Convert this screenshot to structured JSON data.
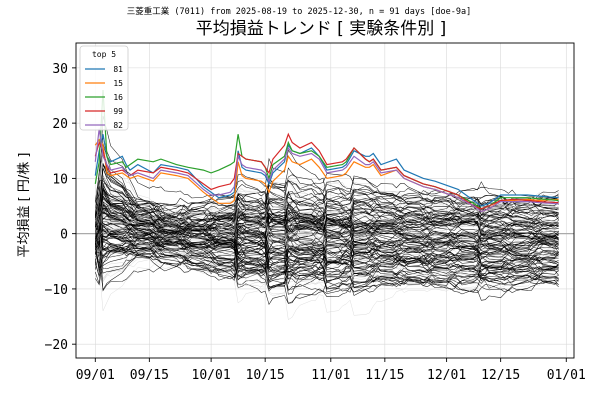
{
  "chart_data": {
    "type": "line",
    "suptitle": "三菱重工業 (7011) from 2025-08-19 to 2025-12-30, n = 91 days [doe-9a]",
    "title": "平均損益トレンド [ 実験条件別 ]",
    "xlabel": "",
    "ylabel": "平均損益 [ 円/株 ]",
    "xlim": [
      "2025-08-27",
      "2026-01-03"
    ],
    "ylim": [
      -22.5,
      34.5
    ],
    "xticks": [
      "2025-09-01",
      "2025-09-15",
      "2025-10-01",
      "2025-10-15",
      "2025-11-01",
      "2025-11-15",
      "2025-12-01",
      "2025-12-15",
      "2026-01-01"
    ],
    "xtick_labels": [
      "09/01",
      "09/15",
      "10/01",
      "10/15",
      "11/01",
      "11/15",
      "12/01",
      "12/15",
      "01/01"
    ],
    "yticks": [
      -20,
      -10,
      0,
      10,
      20,
      30
    ],
    "ytick_labels": [
      "−20",
      "−10",
      "0",
      "10",
      "20",
      "30"
    ],
    "grid": true,
    "zero_line": true,
    "legend": {
      "title": "top 5",
      "placement": "top-left"
    },
    "background_series": {
      "description_count": 150,
      "color": "#000000",
      "note": "many experiment-condition trend lines (black and light gray)"
    },
    "series": [
      {
        "name": "81",
        "color": "#1f77b4",
        "points": [
          [
            "2025-09-01",
            10.5
          ],
          [
            "2025-09-02",
            15.0
          ],
          [
            "2025-09-03",
            18.0
          ],
          [
            "2025-09-04",
            14.0
          ],
          [
            "2025-09-05",
            13.0
          ],
          [
            "2025-09-08",
            14.0
          ],
          [
            "2025-09-09",
            12.5
          ],
          [
            "2025-09-10",
            11.5
          ],
          [
            "2025-09-12",
            12.5
          ],
          [
            "2025-09-16",
            11.0
          ],
          [
            "2025-09-18",
            12.5
          ],
          [
            "2025-09-22",
            12.0
          ],
          [
            "2025-09-25",
            11.5
          ],
          [
            "2025-09-29",
            8.5
          ],
          [
            "2025-10-01",
            7.5
          ],
          [
            "2025-10-03",
            6.5
          ],
          [
            "2025-10-06",
            7.0
          ],
          [
            "2025-10-07",
            7.5
          ],
          [
            "2025-10-08",
            15.0
          ],
          [
            "2025-10-09",
            12.0
          ],
          [
            "2025-10-10",
            11.5
          ],
          [
            "2025-10-14",
            11.0
          ],
          [
            "2025-10-15",
            10.5
          ],
          [
            "2025-10-16",
            9.0
          ],
          [
            "2025-10-17",
            11.0
          ],
          [
            "2025-10-20",
            13.0
          ],
          [
            "2025-10-21",
            16.0
          ],
          [
            "2025-10-22",
            15.0
          ],
          [
            "2025-10-24",
            14.5
          ],
          [
            "2025-10-27",
            15.5
          ],
          [
            "2025-10-29",
            14.0
          ],
          [
            "2025-10-31",
            11.5
          ],
          [
            "2025-11-04",
            12.0
          ],
          [
            "2025-11-05",
            12.5
          ],
          [
            "2025-11-07",
            15.0
          ],
          [
            "2025-11-10",
            14.0
          ],
          [
            "2025-11-11",
            14.0
          ],
          [
            "2025-11-12",
            14.5
          ],
          [
            "2025-11-14",
            12.5
          ],
          [
            "2025-11-18",
            13.5
          ],
          [
            "2025-11-20",
            11.5
          ],
          [
            "2025-11-25",
            10.0
          ],
          [
            "2025-11-28",
            9.5
          ],
          [
            "2025-12-02",
            8.5
          ],
          [
            "2025-12-04",
            8.0
          ],
          [
            "2025-12-08",
            6.0
          ],
          [
            "2025-12-10",
            5.0
          ],
          [
            "2025-12-12",
            5.5
          ],
          [
            "2025-12-15",
            7.0
          ],
          [
            "2025-12-18",
            7.0
          ],
          [
            "2025-12-22",
            7.0
          ],
          [
            "2025-12-25",
            6.8
          ],
          [
            "2025-12-30",
            6.5
          ]
        ]
      },
      {
        "name": "15",
        "color": "#ff7f0e",
        "points": [
          [
            "2025-09-01",
            16.0
          ],
          [
            "2025-09-02",
            17.0
          ],
          [
            "2025-09-03",
            16.0
          ],
          [
            "2025-09-04",
            11.0
          ],
          [
            "2025-09-05",
            10.5
          ],
          [
            "2025-09-08",
            11.0
          ],
          [
            "2025-09-09",
            10.5
          ],
          [
            "2025-09-10",
            10.0
          ],
          [
            "2025-09-12",
            10.5
          ],
          [
            "2025-09-16",
            9.5
          ],
          [
            "2025-09-18",
            11.0
          ],
          [
            "2025-09-22",
            10.5
          ],
          [
            "2025-09-25",
            10.0
          ],
          [
            "2025-09-29",
            7.5
          ],
          [
            "2025-10-01",
            6.5
          ],
          [
            "2025-10-03",
            5.5
          ],
          [
            "2025-10-06",
            5.5
          ],
          [
            "2025-10-07",
            6.0
          ],
          [
            "2025-10-08",
            13.0
          ],
          [
            "2025-10-09",
            10.5
          ],
          [
            "2025-10-10",
            10.0
          ],
          [
            "2025-10-14",
            9.5
          ],
          [
            "2025-10-15",
            9.0
          ],
          [
            "2025-10-16",
            7.5
          ],
          [
            "2025-10-17",
            9.5
          ],
          [
            "2025-10-20",
            11.5
          ],
          [
            "2025-10-21",
            14.0
          ],
          [
            "2025-10-22",
            13.0
          ],
          [
            "2025-10-24",
            12.5
          ],
          [
            "2025-10-27",
            13.5
          ],
          [
            "2025-10-29",
            12.0
          ],
          [
            "2025-10-31",
            10.0
          ],
          [
            "2025-11-04",
            10.5
          ],
          [
            "2025-11-05",
            11.0
          ],
          [
            "2025-11-07",
            13.0
          ],
          [
            "2025-11-10",
            12.0
          ],
          [
            "2025-11-11",
            12.0
          ],
          [
            "2025-11-12",
            12.5
          ],
          [
            "2025-11-14",
            10.5
          ],
          [
            "2025-11-18",
            11.5
          ],
          [
            "2025-11-20",
            10.0
          ],
          [
            "2025-11-25",
            8.5
          ],
          [
            "2025-11-28",
            8.0
          ],
          [
            "2025-12-02",
            7.0
          ],
          [
            "2025-12-04",
            6.5
          ],
          [
            "2025-12-08",
            5.0
          ],
          [
            "2025-12-10",
            4.0
          ],
          [
            "2025-12-12",
            4.5
          ],
          [
            "2025-12-15",
            6.0
          ],
          [
            "2025-12-18",
            6.0
          ],
          [
            "2025-12-22",
            6.2
          ],
          [
            "2025-12-25",
            6.0
          ],
          [
            "2025-12-30",
            6.2
          ]
        ]
      },
      {
        "name": "16",
        "color": "#2ca02c",
        "points": [
          [
            "2025-09-01",
            9.0
          ],
          [
            "2025-09-02",
            13.0
          ],
          [
            "2025-09-03",
            26.0
          ],
          [
            "2025-09-04",
            14.0
          ],
          [
            "2025-09-05",
            12.5
          ],
          [
            "2025-09-08",
            13.0
          ],
          [
            "2025-09-09",
            12.0
          ],
          [
            "2025-09-10",
            12.5
          ],
          [
            "2025-09-12",
            13.5
          ],
          [
            "2025-09-16",
            13.0
          ],
          [
            "2025-09-18",
            13.5
          ],
          [
            "2025-09-22",
            12.5
          ],
          [
            "2025-09-25",
            12.0
          ],
          [
            "2025-09-29",
            11.5
          ],
          [
            "2025-10-01",
            11.0
          ],
          [
            "2025-10-03",
            11.5
          ],
          [
            "2025-10-06",
            12.5
          ],
          [
            "2025-10-07",
            13.0
          ],
          [
            "2025-10-08",
            18.0
          ],
          [
            "2025-10-09",
            14.0
          ],
          [
            "2025-10-10",
            13.5
          ],
          [
            "2025-10-14",
            13.0
          ],
          [
            "2025-10-15",
            12.0
          ],
          [
            "2025-10-16",
            10.0
          ],
          [
            "2025-10-17",
            12.5
          ],
          [
            "2025-10-20",
            14.0
          ],
          [
            "2025-10-21",
            16.5
          ],
          [
            "2025-10-22",
            15.0
          ],
          [
            "2025-10-24",
            14.5
          ],
          [
            "2025-10-27",
            15.0
          ],
          [
            "2025-10-29",
            14.0
          ],
          [
            "2025-10-31",
            12.0
          ],
          [
            "2025-11-04",
            12.5
          ],
          [
            "2025-11-05",
            13.0
          ],
          [
            "2025-11-07",
            15.5
          ],
          [
            "2025-11-10",
            13.5
          ],
          [
            "2025-11-11",
            13.0
          ],
          [
            "2025-11-12",
            13.5
          ],
          [
            "2025-11-14",
            11.5
          ],
          [
            "2025-11-18",
            12.0
          ],
          [
            "2025-11-20",
            10.5
          ],
          [
            "2025-11-25",
            9.0
          ],
          [
            "2025-11-28",
            8.5
          ],
          [
            "2025-12-02",
            7.5
          ],
          [
            "2025-12-04",
            7.0
          ],
          [
            "2025-12-08",
            5.5
          ],
          [
            "2025-12-10",
            4.5
          ],
          [
            "2025-12-12",
            5.0
          ],
          [
            "2025-12-15",
            6.5
          ],
          [
            "2025-12-18",
            6.5
          ],
          [
            "2025-12-22",
            6.5
          ],
          [
            "2025-12-25",
            6.3
          ],
          [
            "2025-12-30",
            6.0
          ]
        ]
      },
      {
        "name": "99",
        "color": "#d62728",
        "points": [
          [
            "2025-09-01",
            14.0
          ],
          [
            "2025-09-02",
            16.5
          ],
          [
            "2025-09-03",
            15.0
          ],
          [
            "2025-09-04",
            12.0
          ],
          [
            "2025-09-05",
            11.0
          ],
          [
            "2025-09-08",
            11.5
          ],
          [
            "2025-09-09",
            11.0
          ],
          [
            "2025-09-10",
            10.5
          ],
          [
            "2025-09-12",
            11.5
          ],
          [
            "2025-09-16",
            11.0
          ],
          [
            "2025-09-18",
            12.0
          ],
          [
            "2025-09-22",
            11.5
          ],
          [
            "2025-09-25",
            11.0
          ],
          [
            "2025-09-29",
            9.0
          ],
          [
            "2025-10-01",
            8.0
          ],
          [
            "2025-10-03",
            8.5
          ],
          [
            "2025-10-06",
            9.0
          ],
          [
            "2025-10-07",
            10.0
          ],
          [
            "2025-10-08",
            14.5
          ],
          [
            "2025-10-09",
            14.0
          ],
          [
            "2025-10-10",
            13.5
          ],
          [
            "2025-10-14",
            13.0
          ],
          [
            "2025-10-15",
            12.0
          ],
          [
            "2025-10-16",
            11.0
          ],
          [
            "2025-10-17",
            13.5
          ],
          [
            "2025-10-20",
            16.0
          ],
          [
            "2025-10-21",
            18.0
          ],
          [
            "2025-10-22",
            16.5
          ],
          [
            "2025-10-24",
            15.5
          ],
          [
            "2025-10-27",
            16.5
          ],
          [
            "2025-10-29",
            15.0
          ],
          [
            "2025-10-31",
            12.5
          ],
          [
            "2025-11-04",
            13.0
          ],
          [
            "2025-11-05",
            13.5
          ],
          [
            "2025-11-07",
            15.5
          ],
          [
            "2025-11-10",
            13.5
          ],
          [
            "2025-11-11",
            13.0
          ],
          [
            "2025-11-12",
            13.5
          ],
          [
            "2025-11-14",
            11.5
          ],
          [
            "2025-11-18",
            12.0
          ],
          [
            "2025-11-20",
            10.5
          ],
          [
            "2025-11-25",
            9.0
          ],
          [
            "2025-11-28",
            8.5
          ],
          [
            "2025-12-02",
            7.5
          ],
          [
            "2025-12-04",
            7.0
          ],
          [
            "2025-12-08",
            5.0
          ],
          [
            "2025-12-10",
            4.5
          ],
          [
            "2025-12-12",
            5.0
          ],
          [
            "2025-12-15",
            6.0
          ],
          [
            "2025-12-18",
            6.2
          ],
          [
            "2025-12-22",
            6.0
          ],
          [
            "2025-12-25",
            5.8
          ],
          [
            "2025-12-30",
            5.6
          ]
        ]
      },
      {
        "name": "82",
        "color": "#9467bd",
        "points": [
          [
            "2025-09-01",
            13.0
          ],
          [
            "2025-09-02",
            19.0
          ],
          [
            "2025-09-03",
            14.0
          ],
          [
            "2025-09-04",
            12.5
          ],
          [
            "2025-09-05",
            11.5
          ],
          [
            "2025-09-08",
            12.0
          ],
          [
            "2025-09-09",
            11.0
          ],
          [
            "2025-09-10",
            10.5
          ],
          [
            "2025-09-12",
            11.0
          ],
          [
            "2025-09-16",
            10.0
          ],
          [
            "2025-09-18",
            11.5
          ],
          [
            "2025-09-22",
            11.0
          ],
          [
            "2025-09-25",
            10.5
          ],
          [
            "2025-09-29",
            8.0
          ],
          [
            "2025-10-01",
            7.0
          ],
          [
            "2025-10-03",
            7.0
          ],
          [
            "2025-10-06",
            7.5
          ],
          [
            "2025-10-07",
            8.5
          ],
          [
            "2025-10-08",
            14.0
          ],
          [
            "2025-10-09",
            12.5
          ],
          [
            "2025-10-10",
            12.0
          ],
          [
            "2025-10-14",
            11.5
          ],
          [
            "2025-10-15",
            11.0
          ],
          [
            "2025-10-16",
            9.5
          ],
          [
            "2025-10-17",
            11.5
          ],
          [
            "2025-10-20",
            13.5
          ],
          [
            "2025-10-21",
            15.5
          ],
          [
            "2025-10-22",
            14.5
          ],
          [
            "2025-10-24",
            14.0
          ],
          [
            "2025-10-27",
            14.5
          ],
          [
            "2025-10-29",
            13.5
          ],
          [
            "2025-10-31",
            11.0
          ],
          [
            "2025-11-04",
            11.5
          ],
          [
            "2025-11-05",
            12.0
          ],
          [
            "2025-11-07",
            14.0
          ],
          [
            "2025-11-10",
            12.5
          ],
          [
            "2025-11-11",
            12.5
          ],
          [
            "2025-11-12",
            13.0
          ],
          [
            "2025-11-14",
            11.0
          ],
          [
            "2025-11-18",
            11.5
          ],
          [
            "2025-11-20",
            10.0
          ],
          [
            "2025-11-25",
            8.5
          ],
          [
            "2025-11-28",
            8.0
          ],
          [
            "2025-12-02",
            7.0
          ],
          [
            "2025-12-04",
            6.5
          ],
          [
            "2025-12-08",
            5.0
          ],
          [
            "2025-12-10",
            4.0
          ],
          [
            "2025-12-12",
            4.5
          ],
          [
            "2025-12-15",
            5.8
          ],
          [
            "2025-12-18",
            5.8
          ],
          [
            "2025-12-22",
            5.8
          ],
          [
            "2025-12-25",
            5.6
          ],
          [
            "2025-12-30",
            5.4
          ]
        ]
      }
    ]
  }
}
